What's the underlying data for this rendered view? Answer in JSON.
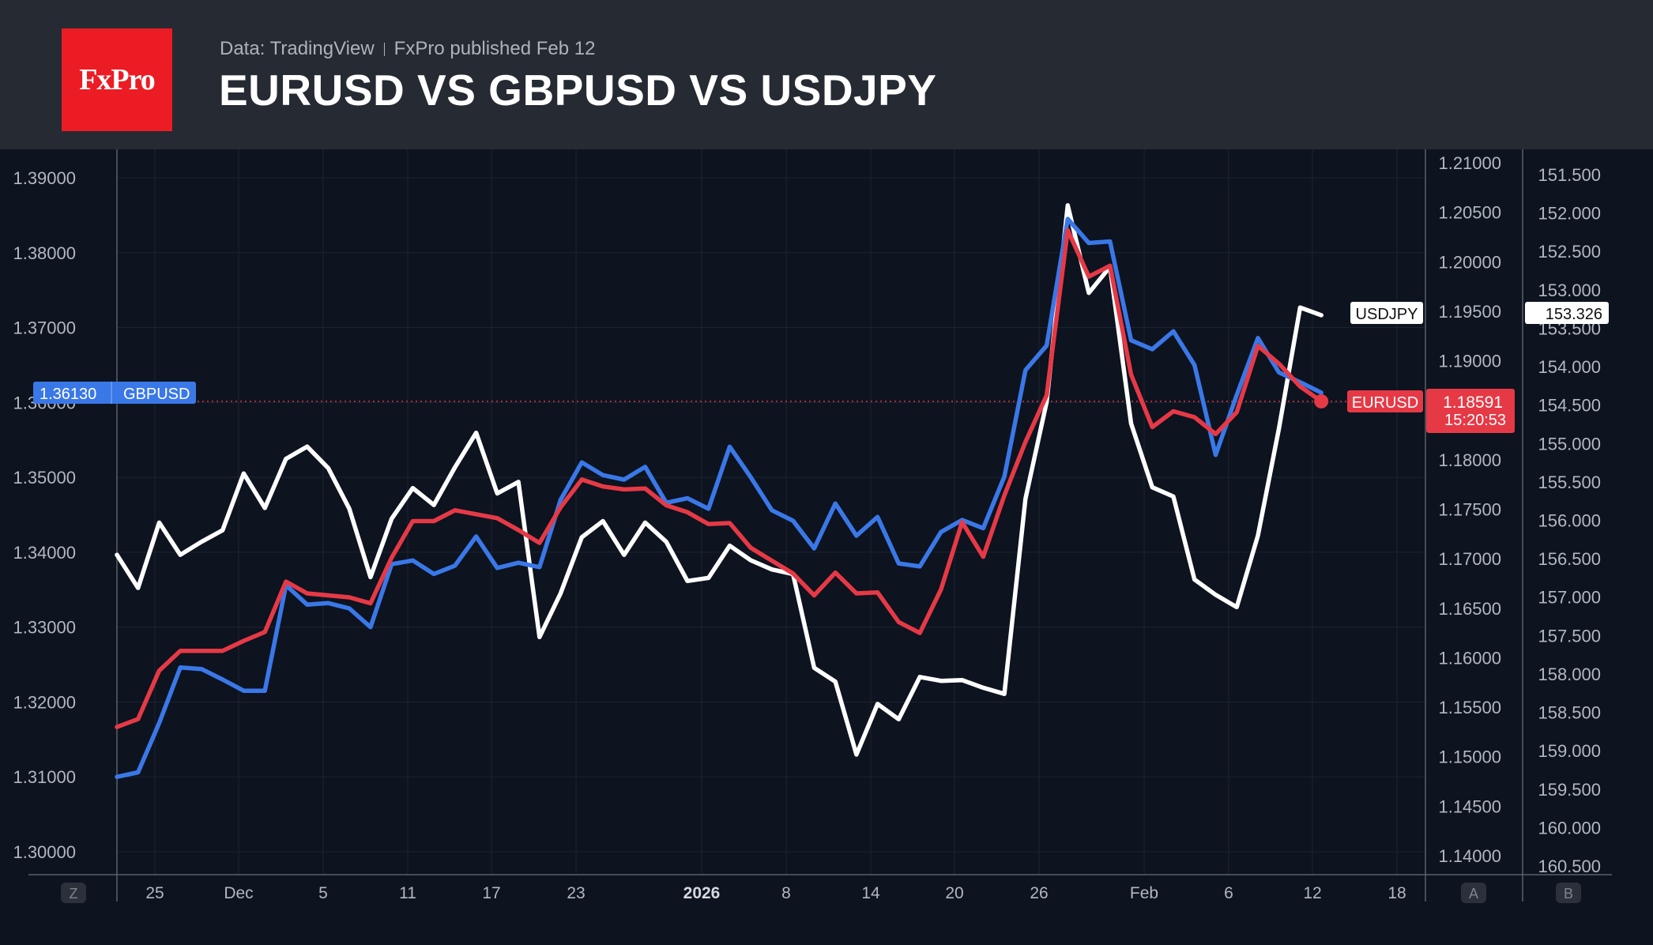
{
  "header": {
    "logo_text": "FxPro",
    "source": "Data: TradingView",
    "published": "FxPro published Feb 12",
    "title": "EURUSD VS GBPUSD VS USDJPY"
  },
  "colors": {
    "background": "#0d131f",
    "header_bg": "#262a33",
    "brand_red": "#ec1c24",
    "eurusd": "#e63946",
    "gbpusd": "#3a78e8",
    "usdjpy": "#ffffff",
    "grid": "#1d2431",
    "axis_text": "#b3b7c0"
  },
  "chart_data": {
    "type": "line",
    "x_tick_labels": [
      "25",
      "Dec",
      "5",
      "11",
      "17",
      "23",
      "2026",
      "8",
      "14",
      "20",
      "26",
      "Feb",
      "6",
      "12",
      "18"
    ],
    "scale_buttons": [
      "Z",
      "A",
      "B"
    ],
    "left_axis": {
      "ticks": [
        "1.39000",
        "1.38000",
        "1.37000",
        "1.36000",
        "1.35000",
        "1.34000",
        "1.33000",
        "1.32000",
        "1.31000",
        "1.30000"
      ],
      "range": [
        1.3,
        1.39
      ]
    },
    "mid_axis": {
      "ticks": [
        "1.21000",
        "1.20500",
        "1.20000",
        "1.19500",
        "1.19000",
        "1.18500",
        "1.18000",
        "1.17500",
        "1.17000",
        "1.16500",
        "1.16000",
        "1.15500",
        "1.15000",
        "1.14500",
        "1.14000"
      ],
      "range": [
        1.14,
        1.21
      ]
    },
    "right_axis": {
      "ticks": [
        "151.500",
        "152.000",
        "152.500",
        "153.000",
        "153.500",
        "154.000",
        "154.500",
        "155.000",
        "155.500",
        "156.000",
        "156.500",
        "157.000",
        "157.500",
        "158.000",
        "158.500",
        "159.000",
        "159.500",
        "160.000",
        "160.500"
      ],
      "range": [
        151.5,
        160.5
      ],
      "inverted": true
    },
    "series": [
      {
        "name": "GBPUSD",
        "axis": "left",
        "last_value": "1.36130",
        "values": [
          1.31,
          1.3106,
          1.3172,
          1.3246,
          1.3244,
          1.323,
          1.3215,
          1.3215,
          1.3356,
          1.333,
          1.3332,
          1.3325,
          1.33,
          1.3384,
          1.3389,
          1.3371,
          1.3382,
          1.3421,
          1.3379,
          1.3386,
          1.338,
          1.347,
          1.352,
          1.3503,
          1.3497,
          1.3514,
          1.3466,
          1.3472,
          1.3458,
          1.3541,
          1.35,
          1.3456,
          1.3442,
          1.3405,
          1.3465,
          1.3422,
          1.3447,
          1.3385,
          1.3381,
          1.3427,
          1.3443,
          1.3432,
          1.3501,
          1.3643,
          1.3676,
          1.3845,
          1.3813,
          1.3815,
          1.3683,
          1.3671,
          1.3695,
          1.365,
          1.353,
          1.361,
          1.3686,
          1.364,
          1.3627,
          1.3613
        ]
      },
      {
        "name": "EURUSD",
        "axis": "mid",
        "last_value": "1.18591",
        "countdown": "15:20:53",
        "values": [
          1.153,
          1.1538,
          1.1587,
          1.1607,
          1.1607,
          1.1607,
          1.1617,
          1.1626,
          1.1677,
          1.1665,
          1.1663,
          1.1661,
          1.1655,
          1.1701,
          1.1738,
          1.1738,
          1.1749,
          1.1745,
          1.1741,
          1.1729,
          1.1716,
          1.1752,
          1.178,
          1.1773,
          1.177,
          1.1771,
          1.1754,
          1.1747,
          1.1735,
          1.1736,
          1.1711,
          1.1698,
          1.1685,
          1.1663,
          1.1686,
          1.1665,
          1.1666,
          1.1636,
          1.1625,
          1.1669,
          1.1737,
          1.1702,
          1.1764,
          1.1818,
          1.1865,
          1.2032,
          1.1985,
          1.1996,
          1.1886,
          1.1833,
          1.1849,
          1.1843,
          1.1826,
          1.1848,
          1.1915,
          1.1897,
          1.1874,
          1.1859
        ]
      },
      {
        "name": "USDJPY",
        "axis": "right",
        "last_value": "153.326",
        "values": [
          156.45,
          156.88,
          156.03,
          156.45,
          156.28,
          156.13,
          155.39,
          155.84,
          155.2,
          155.04,
          155.32,
          155.85,
          156.74,
          155.98,
          155.58,
          155.8,
          155.31,
          154.86,
          155.65,
          155.5,
          157.52,
          156.95,
          156.22,
          156.01,
          156.45,
          156.03,
          156.28,
          156.79,
          156.75,
          156.33,
          156.52,
          156.64,
          156.7,
          157.92,
          158.1,
          159.05,
          158.39,
          158.59,
          158.04,
          158.09,
          158.08,
          158.18,
          158.26,
          155.72,
          154.46,
          151.9,
          153.04,
          152.7,
          154.74,
          155.57,
          155.69,
          156.77,
          156.97,
          157.13,
          156.2,
          154.8,
          153.23,
          153.33
        ]
      }
    ]
  }
}
